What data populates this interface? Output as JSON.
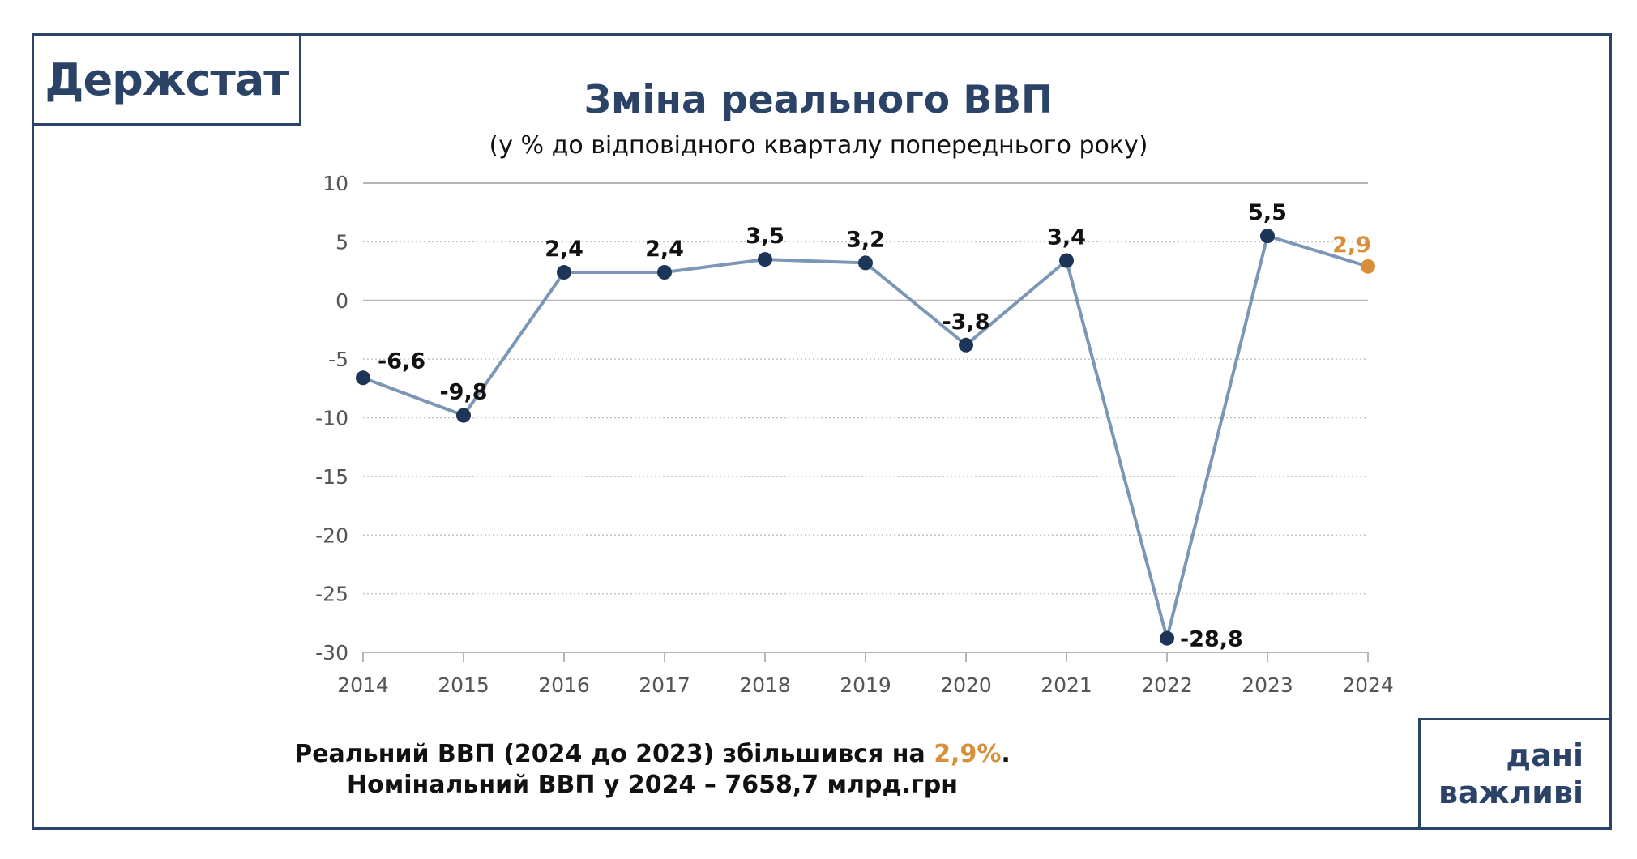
{
  "brand": {
    "logo_text": "Держстат",
    "badge_line1": "дані",
    "badge_line2": "важливі"
  },
  "colors": {
    "frame": "#2a4366",
    "line": "#7b97b5",
    "marker": "#1d3557",
    "accent": "#d88f3a"
  },
  "chart_data": {
    "type": "line",
    "title": "Зміна реального ВВП",
    "subtitle": "(у % до відповідного кварталу попереднього року)",
    "x": [
      "2014",
      "2015",
      "2016",
      "2017",
      "2018",
      "2019",
      "2020",
      "2021",
      "2022",
      "2023",
      "2024"
    ],
    "values": [
      -6.6,
      -9.8,
      2.4,
      2.4,
      3.5,
      3.2,
      -3.8,
      3.4,
      -28.8,
      5.5,
      2.9
    ],
    "data_labels": [
      "-6,6",
      "-9,8",
      "2,4",
      "2,4",
      "3,5",
      "3,2",
      "-3,8",
      "3,4",
      "-28,8",
      "5,5",
      "2,9"
    ],
    "highlight_last": true,
    "ylim": [
      -30,
      10
    ],
    "yticks": [
      10,
      5,
      0,
      -5,
      -10,
      -15,
      -20,
      -25,
      -30
    ],
    "grid": true,
    "grid_style": "dotted"
  },
  "footer": {
    "line1_prefix": "Реальний ВВП (2024 до 2023) збільшився на ",
    "line1_value": "2,9%",
    "line1_suffix": ".",
    "line2": "Номінальний ВВП у 2024 – 7658,7 млрд.грн"
  }
}
